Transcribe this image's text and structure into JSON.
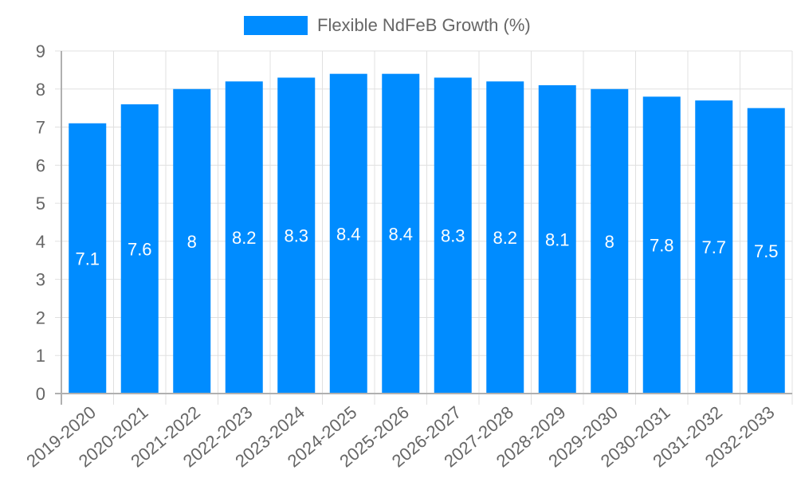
{
  "legend": {
    "label": "Flexible NdFeB Growth (%)",
    "color": "#008CFF"
  },
  "colors": {
    "bar": "#008CFF",
    "grid": "#e0e0e0",
    "axis": "#b0b0b0",
    "tick_text": "#666666",
    "data_label": "#ffffff"
  },
  "chart_data": {
    "type": "bar",
    "title": "",
    "xlabel": "",
    "ylabel": "",
    "ylim": [
      0,
      9
    ],
    "yticks": [
      0,
      1,
      2,
      3,
      4,
      5,
      6,
      7,
      8,
      9
    ],
    "grid": true,
    "legend_position": "top",
    "categories": [
      "2019-2020",
      "2020-2021",
      "2021-2022",
      "2022-2023",
      "2023-2024",
      "2024-2025",
      "2025-2026",
      "2026-2027",
      "2027-2028",
      "2028-2029",
      "2029-2030",
      "2030-2031",
      "2031-2032",
      "2032-2033"
    ],
    "series": [
      {
        "name": "Flexible NdFeB Growth (%)",
        "values": [
          7.1,
          7.6,
          8,
          8.2,
          8.3,
          8.4,
          8.4,
          8.3,
          8.2,
          8.1,
          8,
          7.8,
          7.7,
          7.5
        ]
      }
    ],
    "data_labels": [
      "7.1",
      "7.6",
      "8",
      "8.2",
      "8.3",
      "8.4",
      "8.4",
      "8.3",
      "8.2",
      "8.1",
      "8",
      "7.8",
      "7.7",
      "7.5"
    ]
  }
}
